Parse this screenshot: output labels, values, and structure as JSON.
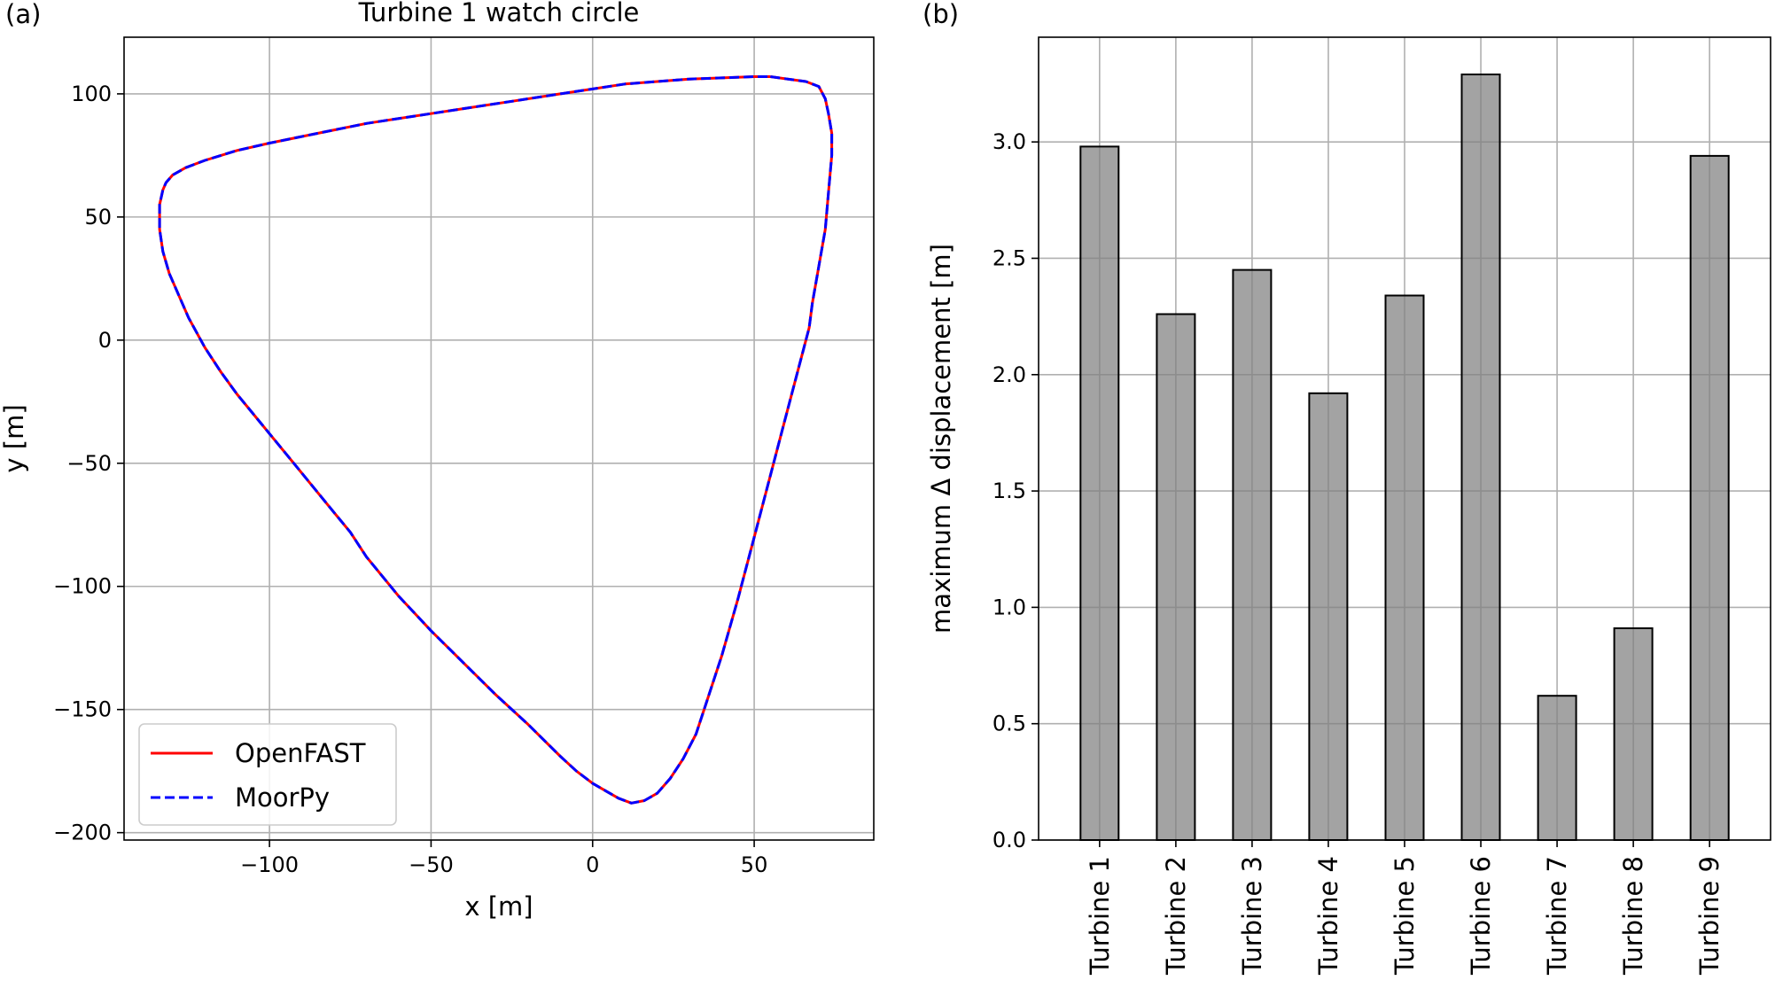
{
  "chart_data": [
    {
      "type": "line",
      "panel_label": "(a)",
      "title": "Turbine 1 watch circle",
      "xlabel": "x [m]",
      "ylabel": "y [m]",
      "xlim": [
        -145,
        87
      ],
      "ylim": [
        -203,
        123
      ],
      "xticks": [
        -100,
        -50,
        0,
        50
      ],
      "xtick_labels": [
        "−100",
        "−50",
        "0",
        "50"
      ],
      "yticks": [
        -200,
        -150,
        -100,
        -50,
        0,
        50,
        100
      ],
      "ytick_labels": [
        "−200",
        "−150",
        "−100",
        "−50",
        "0",
        "50",
        "100"
      ],
      "grid": true,
      "legend": "lower-left",
      "series": [
        {
          "name": "OpenFAST",
          "color": "#ff0000",
          "style": "solid",
          "x": [
            55,
            66,
            70,
            72,
            73,
            74,
            74,
            73,
            72,
            70,
            68,
            67,
            65,
            60,
            55,
            50,
            45,
            40,
            35,
            32,
            28,
            24,
            20,
            16,
            12,
            8,
            4,
            0,
            -5,
            -10,
            -20,
            -30,
            -40,
            -50,
            -60,
            -70,
            -75,
            -80,
            -90,
            -100,
            -110,
            -115,
            -120,
            -125,
            -128,
            -131,
            -133,
            -134,
            -134,
            -133,
            -132,
            -130,
            -126,
            -120,
            -110,
            -100,
            -85,
            -70,
            -50,
            -40,
            -25,
            -10,
            0,
            10,
            20,
            30,
            40,
            50,
            55
          ],
          "y": [
            107,
            105,
            103,
            98,
            92,
            84,
            75,
            60,
            45,
            30,
            15,
            5,
            -5,
            -30,
            -55,
            -80,
            -105,
            -128,
            -148,
            -160,
            -170,
            -178,
            -184,
            -187,
            -188,
            -186,
            -183,
            -180,
            -175,
            -169,
            -156,
            -144,
            -131,
            -118,
            -104,
            -88,
            -78,
            -70,
            -54,
            -38,
            -22,
            -13,
            -3,
            9,
            18,
            27,
            36,
            45,
            55,
            61,
            64,
            67,
            70,
            73,
            77,
            80,
            84,
            88,
            92,
            94,
            97,
            100,
            102,
            104,
            105,
            106,
            106.5,
            107,
            107
          ]
        },
        {
          "name": "MoorPy",
          "color": "#0000ff",
          "style": "dashed",
          "x": [
            55,
            66,
            70,
            72,
            73,
            74,
            74,
            73,
            72,
            70,
            68,
            67,
            65,
            60,
            55,
            50,
            45,
            40,
            35,
            32,
            28,
            24,
            20,
            16,
            12,
            8,
            4,
            0,
            -5,
            -10,
            -20,
            -30,
            -40,
            -50,
            -60,
            -70,
            -75,
            -80,
            -90,
            -100,
            -110,
            -115,
            -120,
            -125,
            -128,
            -131,
            -133,
            -134,
            -134,
            -133,
            -132,
            -130,
            -126,
            -120,
            -110,
            -100,
            -85,
            -70,
            -50,
            -40,
            -25,
            -10,
            0,
            10,
            20,
            30,
            40,
            50,
            55
          ],
          "y": [
            107,
            105,
            103,
            98,
            92,
            84,
            75,
            60,
            45,
            30,
            15,
            5,
            -5,
            -30,
            -55,
            -80,
            -105,
            -128,
            -148,
            -160,
            -170,
            -178,
            -184,
            -187,
            -188,
            -186,
            -183,
            -180,
            -175,
            -169,
            -156,
            -144,
            -131,
            -118,
            -104,
            -88,
            -78,
            -70,
            -54,
            -38,
            -22,
            -13,
            -3,
            9,
            18,
            27,
            36,
            45,
            55,
            61,
            64,
            67,
            70,
            73,
            77,
            80,
            84,
            88,
            92,
            94,
            97,
            100,
            102,
            104,
            105,
            106,
            106.5,
            107,
            107
          ]
        }
      ]
    },
    {
      "type": "bar",
      "panel_label": "(b)",
      "title": "",
      "xlabel": "",
      "ylabel": "maximum Δ displacement [m]",
      "categories": [
        "Turbine 1",
        "Turbine 2",
        "Turbine 3",
        "Turbine 4",
        "Turbine 5",
        "Turbine 6",
        "Turbine 7",
        "Turbine 8",
        "Turbine 9"
      ],
      "values": [
        2.98,
        2.26,
        2.45,
        1.92,
        2.34,
        3.29,
        0.62,
        0.91,
        2.94
      ],
      "ylim": [
        0,
        3.45
      ],
      "yticks": [
        0.0,
        0.5,
        1.0,
        1.5,
        2.0,
        2.5,
        3.0
      ],
      "ytick_labels": [
        "0.0",
        "0.5",
        "1.0",
        "1.5",
        "2.0",
        "2.5",
        "3.0"
      ],
      "bar_color": "#808080",
      "grid": true
    }
  ]
}
